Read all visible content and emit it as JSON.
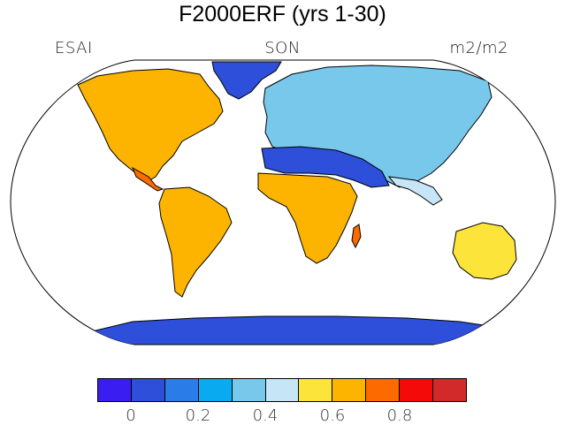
{
  "title": "F2000ERF (yrs 1-30)",
  "variable": "ESAI",
  "season": "SON",
  "units": "m2/m2",
  "map": {
    "projection": "robinson",
    "ocean_color": "#ffffff",
    "ice_color": "#2d4fd9"
  },
  "colorbar": {
    "colors": [
      "#3a1df0",
      "#2d4fd9",
      "#2a7de8",
      "#0aaaf0",
      "#78c8ec",
      "#c6e6f8",
      "#fce43a",
      "#fcb400",
      "#fc6a00",
      "#f50a0a",
      "#d22a2a"
    ],
    "tick_labels": [
      "0",
      "0.2",
      "0.4",
      "0.6",
      "0.8"
    ],
    "tick_values": [
      0,
      0.2,
      0.4,
      0.6,
      0.8
    ],
    "bounds": [
      -0.1,
      1.0
    ]
  }
}
